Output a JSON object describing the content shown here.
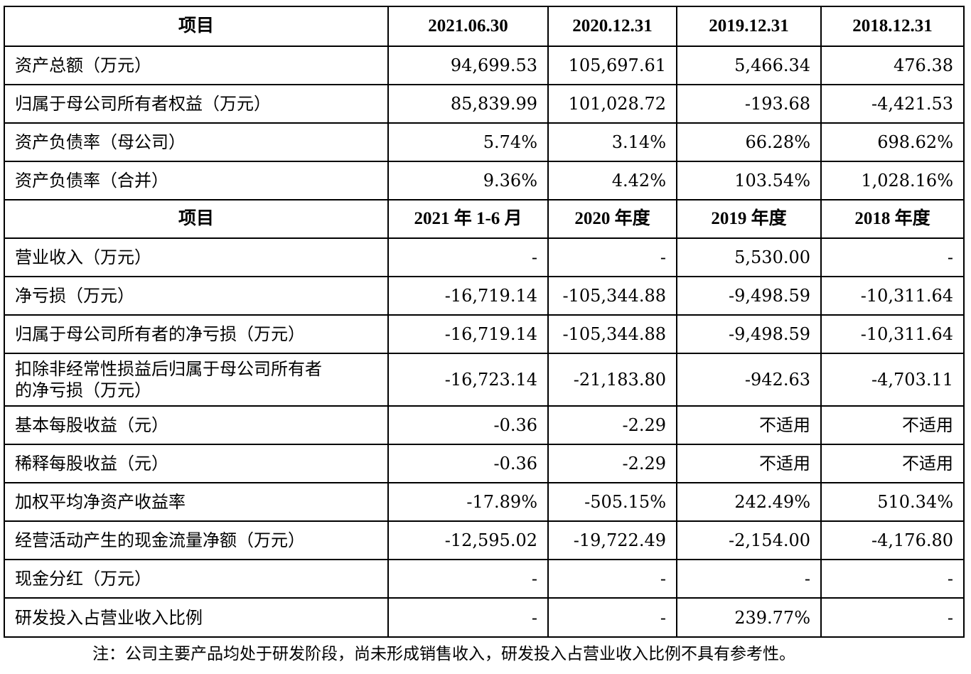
{
  "header1": [
    "项目",
    "2021.06.30",
    "2020.12.31",
    "2019.12.31",
    "2018.12.31"
  ],
  "balance_rows": [
    {
      "label": "资产总额（万元）",
      "values": [
        "94,699.53",
        "105,697.61",
        "5,466.34",
        "476.38"
      ]
    },
    {
      "label": "归属于母公司所有者权益（万元）",
      "values": [
        "85,839.99",
        "101,028.72",
        "-193.68",
        "-4,421.53"
      ]
    },
    {
      "label": "资产负债率（母公司）",
      "values": [
        "5.74%",
        "3.14%",
        "66.28%",
        "698.62%"
      ]
    },
    {
      "label": "资产负债率（合并）",
      "values": [
        "9.36%",
        "4.42%",
        "103.54%",
        "1,028.16%"
      ]
    }
  ],
  "header2": [
    "项目",
    "2021 年 1-6 月",
    "2020 年度",
    "2019 年度",
    "2018 年度"
  ],
  "income_rows": [
    {
      "label": "营业收入（万元）",
      "values": [
        "-",
        "-",
        "5,530.00",
        "-"
      ]
    },
    {
      "label": "净亏损（万元）",
      "values": [
        "-16,719.14",
        "-105,344.88",
        "-9,498.59",
        "-10,311.64"
      ]
    },
    {
      "label": "归属于母公司所有者的净亏损（万元）",
      "values": [
        "-16,719.14",
        "-105,344.88",
        "-9,498.59",
        "-10,311.64"
      ]
    },
    {
      "label": "扣除非经常性损益后归属于母公司所有者",
      "label2": "的净亏损（万元）",
      "values": [
        "-16,723.14",
        "-21,183.80",
        "-942.63",
        "-4,703.11"
      ]
    },
    {
      "label": "基本每股收益（元）",
      "values": [
        "-0.36",
        "-2.29",
        "不适用",
        "不适用"
      ]
    },
    {
      "label": "稀释每股收益（元）",
      "values": [
        "-0.36",
        "-2.29",
        "不适用",
        "不适用"
      ]
    },
    {
      "label": "加权平均净资产收益率",
      "values": [
        "-17.89%",
        "-505.15%",
        "242.49%",
        "510.34%"
      ]
    },
    {
      "label": "经营活动产生的现金流量净额（万元）",
      "values": [
        "-12,595.02",
        "-19,722.49",
        "-2,154.00",
        "-4,176.80"
      ]
    },
    {
      "label": "现金分红（万元）",
      "values": [
        "-",
        "-",
        "-",
        "-"
      ]
    },
    {
      "label": "研发投入占营业收入比例",
      "values": [
        "-",
        "-",
        "239.77%",
        "-"
      ]
    }
  ],
  "note": "注：公司主要产品均处于研发阶段，尚未形成销售收入，研发投入占营业收入比例不具有参考性。"
}
